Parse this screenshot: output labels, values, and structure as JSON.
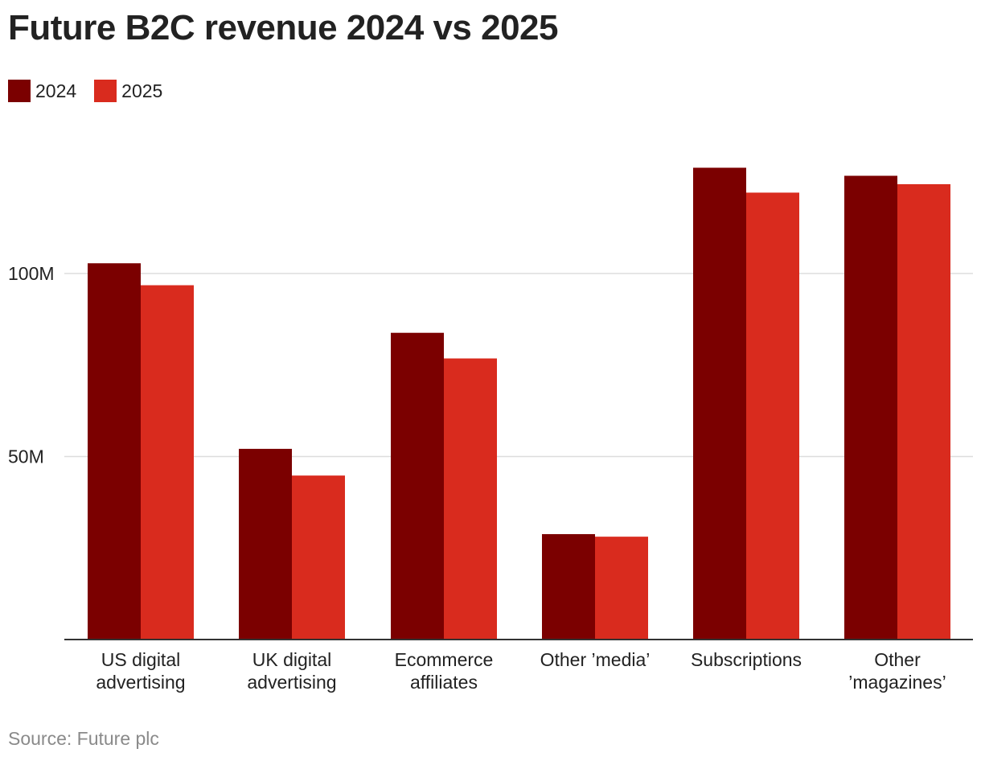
{
  "title": "Future B2C revenue 2024 vs 2025",
  "source": "Source: Future plc",
  "colors": {
    "series_2024": "#7b0000",
    "series_2025": "#d92b1e",
    "gridline": "#dddddd",
    "axis": "#333333",
    "text": "#222222",
    "source_text": "#8a8a8a"
  },
  "chart_data": {
    "type": "bar",
    "title": "Future B2C revenue 2024 vs 2025",
    "xlabel": "",
    "ylabel": "",
    "ylim": [
      0,
      165
    ],
    "y_unit": "M",
    "yticks": [
      {
        "value": 50,
        "label": "50M"
      },
      {
        "value": 100,
        "label": "100M"
      }
    ],
    "grid": true,
    "legend_position": "top-left",
    "categories": [
      [
        "US digital",
        "advertising"
      ],
      [
        "UK digital",
        "advertising"
      ],
      [
        "Ecommerce",
        "affiliates"
      ],
      [
        "Other ’media’"
      ],
      [
        "Subscriptions"
      ],
      [
        "Other",
        "’magazines’"
      ]
    ],
    "series": [
      {
        "name": "2024",
        "color": "#7b0000",
        "values": [
          102.8,
          52.1,
          83.8,
          28.8,
          128.9,
          126.7
        ]
      },
      {
        "name": "2025",
        "color": "#d92b1e",
        "values": [
          96.8,
          44.8,
          76.8,
          28.1,
          122.1,
          124.4
        ]
      }
    ]
  }
}
